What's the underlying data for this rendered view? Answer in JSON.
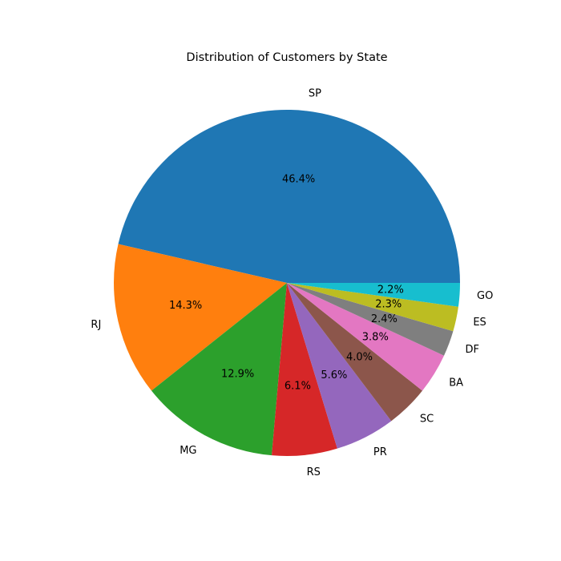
{
  "chart_data": {
    "type": "pie",
    "title": "Distribution of Customers by State",
    "start_angle": 0,
    "direction": "counterclockwise",
    "slices": [
      {
        "label": "SP",
        "value": 46.4,
        "pct_label": "46.4%",
        "color": "#1f77b4"
      },
      {
        "label": "RJ",
        "value": 14.3,
        "pct_label": "14.3%",
        "color": "#ff7f0e"
      },
      {
        "label": "MG",
        "value": 12.9,
        "pct_label": "12.9%",
        "color": "#2ca02c"
      },
      {
        "label": "RS",
        "value": 6.1,
        "pct_label": "6.1%",
        "color": "#d62728"
      },
      {
        "label": "PR",
        "value": 5.6,
        "pct_label": "5.6%",
        "color": "#9467bd"
      },
      {
        "label": "SC",
        "value": 4.0,
        "pct_label": "4.0%",
        "color": "#8c564b"
      },
      {
        "label": "BA",
        "value": 3.8,
        "pct_label": "3.8%",
        "color": "#e377c2"
      },
      {
        "label": "DF",
        "value": 2.4,
        "pct_label": "2.4%",
        "color": "#7f7f7f"
      },
      {
        "label": "ES",
        "value": 2.3,
        "pct_label": "2.3%",
        "color": "#bcbd22"
      },
      {
        "label": "GO",
        "value": 2.2,
        "pct_label": "2.2%",
        "color": "#17becf"
      }
    ]
  }
}
